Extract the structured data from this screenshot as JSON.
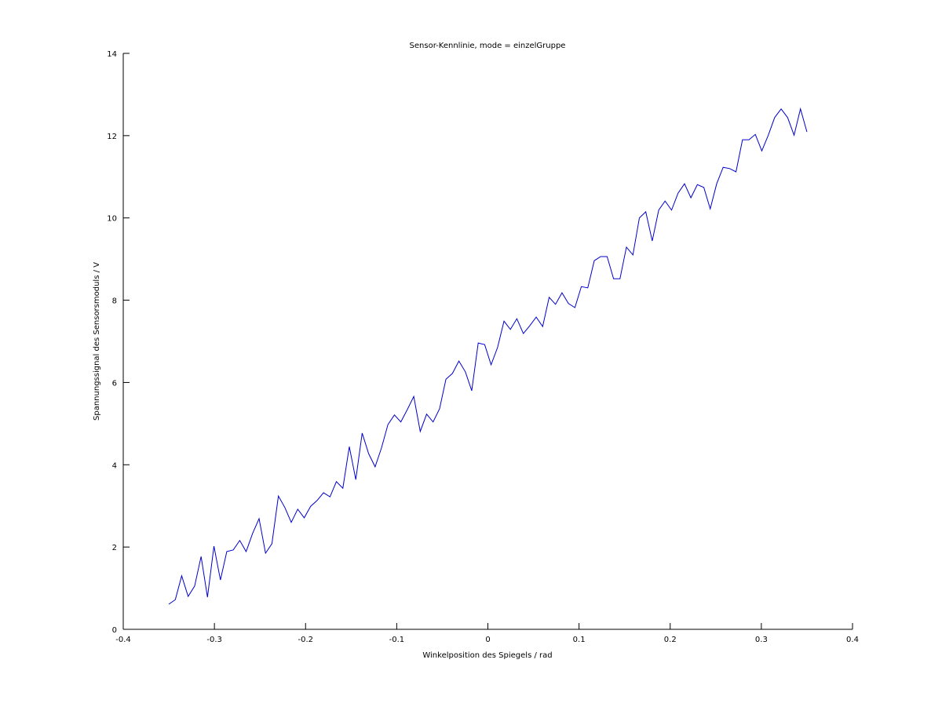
{
  "chart_data": {
    "type": "line",
    "title": "Sensor-Kennlinie, mode = einzelGruppe",
    "xlabel": "Winkelposition des Spiegels / rad",
    "ylabel": "Spannungssignal des Sensorsmoduls / V",
    "x": [
      -0.35,
      -0.3429,
      -0.3359,
      -0.3288,
      -0.3217,
      -0.3146,
      -0.3076,
      -0.3005,
      -0.2934,
      -0.2864,
      -0.2793,
      -0.2722,
      -0.2652,
      -0.2581,
      -0.251,
      -0.2439,
      -0.2369,
      -0.2298,
      -0.2227,
      -0.2157,
      -0.2086,
      -0.2015,
      -0.1944,
      -0.1874,
      -0.1803,
      -0.1732,
      -0.1662,
      -0.1591,
      -0.152,
      -0.1449,
      -0.1379,
      -0.1308,
      -0.1237,
      -0.1167,
      -0.1096,
      -0.1025,
      -0.0955,
      -0.0884,
      -0.0813,
      -0.0742,
      -0.0672,
      -0.0601,
      -0.053,
      -0.046,
      -0.0389,
      -0.0318,
      -0.0247,
      -0.0177,
      -0.0106,
      -0.0035,
      0.0035,
      0.0106,
      0.0177,
      0.0247,
      0.0318,
      0.0389,
      0.046,
      0.053,
      0.0601,
      0.0672,
      0.0742,
      0.0813,
      0.0884,
      0.0955,
      0.1025,
      0.1096,
      0.1167,
      0.1237,
      0.1308,
      0.1379,
      0.1449,
      0.152,
      0.1591,
      0.1662,
      0.1732,
      0.1803,
      0.1874,
      0.1944,
      0.2015,
      0.2086,
      0.2157,
      0.2227,
      0.2298,
      0.2369,
      0.2439,
      0.251,
      0.2581,
      0.2652,
      0.2722,
      0.2793,
      0.2864,
      0.2934,
      0.3005,
      0.3076,
      0.3146,
      0.3217,
      0.3288,
      0.3359,
      0.3429,
      0.35
    ],
    "series": [
      {
        "color": "#0000cc",
        "values": [
          0.61,
          0.72,
          1.3,
          0.8,
          1.05,
          1.77,
          0.78,
          2.02,
          1.2,
          1.89,
          1.93,
          2.16,
          1.89,
          2.33,
          2.69,
          1.85,
          2.08,
          3.24,
          2.96,
          2.6,
          2.92,
          2.71,
          2.99,
          3.13,
          3.32,
          3.22,
          3.59,
          3.43,
          4.44,
          3.64,
          4.77,
          4.27,
          3.95,
          4.41,
          4.98,
          5.21,
          5.04,
          5.34,
          5.66,
          4.81,
          5.23,
          5.04,
          5.36,
          6.08,
          6.22,
          6.52,
          6.26,
          5.8,
          6.96,
          6.92,
          6.43,
          6.85,
          7.49,
          7.29,
          7.55,
          7.19,
          7.38,
          7.59,
          7.36,
          8.07,
          7.9,
          8.18,
          7.92,
          7.82,
          8.33,
          8.3,
          8.96,
          9.06,
          9.06,
          8.52,
          8.52,
          9.29,
          9.1,
          10.0,
          10.15,
          9.44,
          10.19,
          10.41,
          10.19,
          10.6,
          10.83,
          10.49,
          10.81,
          10.74,
          10.22,
          10.83,
          11.23,
          11.2,
          11.12,
          11.9,
          11.9,
          12.03,
          11.63,
          12.01,
          12.44,
          12.65,
          12.44,
          12.01,
          12.65,
          12.09
        ]
      }
    ],
    "xlim": [
      -0.4,
      0.4
    ],
    "xticks": [
      -0.4,
      -0.3,
      -0.2,
      -0.1,
      0,
      0.1,
      0.2,
      0.3,
      0.4
    ],
    "ylim": [
      0,
      14
    ],
    "yticks": [
      0,
      2,
      4,
      6,
      8,
      10,
      12,
      14
    ]
  }
}
